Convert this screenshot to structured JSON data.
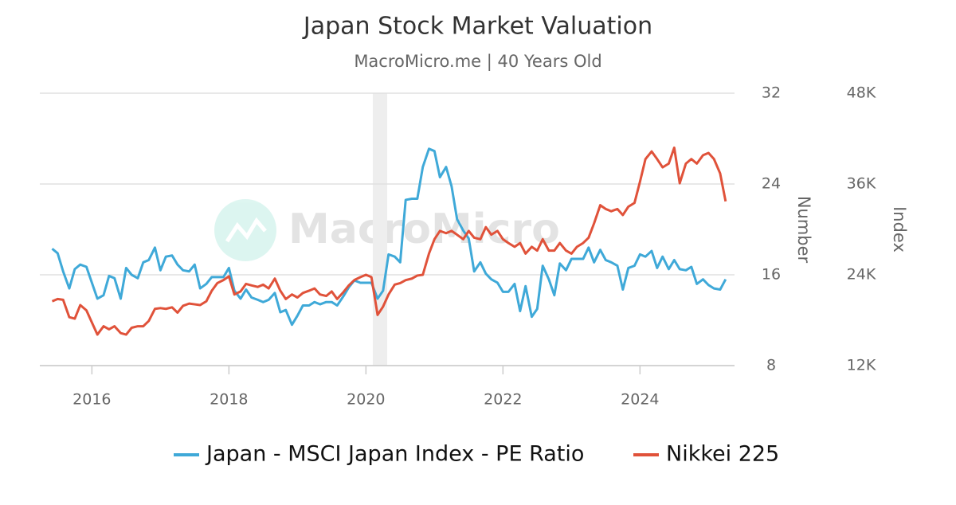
{
  "chart_data": {
    "type": "line",
    "title": "Japan Stock Market Valuation",
    "subtitle": "MacroMicro.me | 40 Years Old",
    "watermark": "MacroMicro",
    "y_label": "Number",
    "y2_label": "Index",
    "xlim": [
      2015.24,
      2025.38
    ],
    "xticks": [
      2016,
      2018,
      2020,
      2022,
      2024
    ],
    "ylim": [
      8,
      32
    ],
    "yticks": [
      8,
      16,
      24,
      32
    ],
    "y2lim": [
      12000,
      48000
    ],
    "y2ticks": [
      {
        "value": 12000,
        "label": "12K"
      },
      {
        "value": 24000,
        "label": "24K"
      },
      {
        "value": 36000,
        "label": "36K"
      },
      {
        "value": 48000,
        "label": "48K"
      }
    ],
    "grid": true,
    "legend": "bottom",
    "shaded_region": [
      2020.1,
      2020.31
    ],
    "x": [
      2015.42,
      2015.5,
      2015.58,
      2015.67,
      2015.75,
      2015.83,
      2015.92,
      2016.0,
      2016.08,
      2016.17,
      2016.25,
      2016.33,
      2016.42,
      2016.5,
      2016.58,
      2016.67,
      2016.75,
      2016.83,
      2016.92,
      2017.0,
      2017.08,
      2017.17,
      2017.25,
      2017.33,
      2017.42,
      2017.5,
      2017.58,
      2017.67,
      2017.75,
      2017.83,
      2017.92,
      2018.0,
      2018.08,
      2018.17,
      2018.25,
      2018.33,
      2018.42,
      2018.5,
      2018.58,
      2018.67,
      2018.75,
      2018.83,
      2018.92,
      2019.0,
      2019.08,
      2019.17,
      2019.25,
      2019.33,
      2019.42,
      2019.5,
      2019.58,
      2019.67,
      2019.75,
      2019.83,
      2019.92,
      2020.0,
      2020.08,
      2020.17,
      2020.25,
      2020.33,
      2020.42,
      2020.5,
      2020.58,
      2020.67,
      2020.75,
      2020.83,
      2020.92,
      2021.0,
      2021.08,
      2021.17,
      2021.25,
      2021.33,
      2021.42,
      2021.5,
      2021.58,
      2021.67,
      2021.75,
      2021.83,
      2021.92,
      2022.0,
      2022.08,
      2022.17,
      2022.25,
      2022.33,
      2022.42,
      2022.5,
      2022.58,
      2022.67,
      2022.75,
      2022.83,
      2022.92,
      2023.0,
      2023.08,
      2023.17,
      2023.25,
      2023.33,
      2023.42,
      2023.5,
      2023.58,
      2023.67,
      2023.75,
      2023.83,
      2023.92,
      2024.0,
      2024.08,
      2024.17,
      2024.25,
      2024.33,
      2024.42,
      2024.5,
      2024.58,
      2024.67,
      2024.75,
      2024.83,
      2024.92,
      2025.0,
      2025.08,
      2025.17,
      2025.25
    ],
    "series": [
      {
        "name": "Japan - MSCI Japan Index - PE Ratio",
        "color": "#3fa9d8",
        "axis": "y",
        "values": [
          18.3,
          17.9,
          16.3,
          14.8,
          16.5,
          16.9,
          16.7,
          15.3,
          13.9,
          14.2,
          15.9,
          15.7,
          13.9,
          16.6,
          16.0,
          15.7,
          17.1,
          17.3,
          18.4,
          16.4,
          17.6,
          17.7,
          16.9,
          16.4,
          16.3,
          16.9,
          14.8,
          15.2,
          15.8,
          15.8,
          15.8,
          16.6,
          14.6,
          13.9,
          14.7,
          14.0,
          13.8,
          13.6,
          13.8,
          14.4,
          12.7,
          12.9,
          11.6,
          12.4,
          13.3,
          13.3,
          13.6,
          13.4,
          13.6,
          13.6,
          13.3,
          14.1,
          14.9,
          15.5,
          15.3,
          15.3,
          15.3,
          13.9,
          14.6,
          17.8,
          17.6,
          17.1,
          22.6,
          22.7,
          22.7,
          25.5,
          27.1,
          26.9,
          24.6,
          25.5,
          23.8,
          20.9,
          19.9,
          19.2,
          16.3,
          17.1,
          16.1,
          15.6,
          15.3,
          14.5,
          14.5,
          15.2,
          12.8,
          15.0,
          12.3,
          13.0,
          16.8,
          15.6,
          14.2,
          17.0,
          16.4,
          17.4,
          17.4,
          17.4,
          18.4,
          17.1,
          18.2,
          17.3,
          17.1,
          16.8,
          14.7,
          16.6,
          16.8,
          17.8,
          17.6,
          18.1,
          16.6,
          17.6,
          16.5,
          17.3,
          16.5,
          16.4,
          16.7,
          15.2,
          15.6,
          15.1,
          14.8,
          14.7,
          15.6
        ]
      },
      {
        "name": "Nikkei 225",
        "color": "#e0523a",
        "axis": "y2",
        "values": [
          20500,
          20800,
          20700,
          18400,
          18200,
          20000,
          19300,
          17700,
          16100,
          17200,
          16800,
          17200,
          16300,
          16100,
          17000,
          17200,
          17200,
          17900,
          19500,
          19600,
          19500,
          19700,
          19000,
          19900,
          20200,
          20100,
          20000,
          20500,
          21900,
          22900,
          23300,
          23800,
          21400,
          21800,
          22800,
          22600,
          22400,
          22700,
          22200,
          23500,
          21900,
          20800,
          21400,
          21000,
          21600,
          21900,
          22200,
          21400,
          21200,
          21800,
          20800,
          21700,
          22600,
          23300,
          23700,
          24000,
          23700,
          18700,
          19800,
          21400,
          22700,
          22900,
          23300,
          23500,
          23900,
          24000,
          26800,
          28700,
          29800,
          29500,
          29800,
          29300,
          28700,
          29800,
          28900,
          28700,
          30300,
          29300,
          29800,
          28700,
          28200,
          27700,
          28200,
          26800,
          27700,
          27200,
          28700,
          27200,
          27200,
          28200,
          27200,
          26800,
          27700,
          28200,
          28900,
          30800,
          33200,
          32700,
          32400,
          32700,
          31900,
          33000,
          33500,
          36300,
          39300,
          40300,
          39300,
          38200,
          38700,
          40800,
          36100,
          38700,
          39300,
          38700,
          39800,
          40100,
          39300,
          37400,
          33700
        ]
      }
    ]
  }
}
